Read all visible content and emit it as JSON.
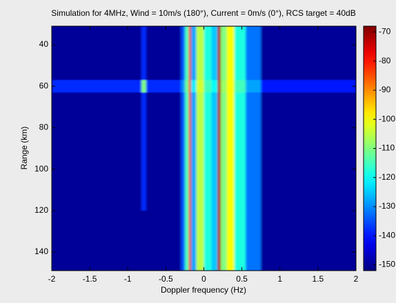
{
  "chart_data": {
    "type": "heatmap",
    "title": "Simulation for 4MHz, Wind = 10m/s (180°), Current = 0m/s (0°), RCS target = 40dB",
    "x_label": "Doppler frequency (Hz)",
    "y_label": "Range (km)",
    "x_edges": [
      -2,
      -0.82,
      -0.76,
      -0.3,
      -0.25,
      -0.2,
      -0.17,
      -0.1,
      0.0,
      0.1,
      0.18,
      0.22,
      0.3,
      0.4,
      0.55,
      0.75,
      2
    ],
    "y_edges": [
      31,
      57,
      63,
      120,
      149
    ],
    "z": [
      [
        -150,
        -138,
        -150,
        -135,
        -115,
        -80,
        -128,
        -105,
        -118,
        -125,
        -72,
        -110,
        -100,
        -118,
        -132,
        -150
      ],
      [
        -138,
        -110,
        -138,
        -130,
        -112,
        -80,
        -122,
        -103,
        -115,
        -120,
        -72,
        -108,
        -100,
        -115,
        -128,
        -140
      ],
      [
        -150,
        -138,
        -150,
        -135,
        -115,
        -80,
        -128,
        -105,
        -118,
        -125,
        -72,
        -110,
        -100,
        -118,
        -132,
        -150
      ],
      [
        -150,
        -150,
        -150,
        -135,
        -115,
        -80,
        -128,
        -105,
        -118,
        -125,
        -72,
        -110,
        -100,
        -118,
        -132,
        -150
      ]
    ],
    "xlim": [
      -2,
      2
    ],
    "xticks": [
      -2,
      -1.5,
      -1,
      -0.5,
      0,
      0.5,
      1,
      1.5,
      2
    ],
    "ylim": [
      31,
      149
    ],
    "yticks": [
      40,
      60,
      80,
      100,
      120,
      140
    ],
    "y_reversed": true,
    "colormap": "jet",
    "clim": [
      -152,
      -68
    ],
    "cticks": [
      -150,
      -140,
      -130,
      -120,
      -110,
      -100,
      -90,
      -80,
      -70
    ]
  }
}
